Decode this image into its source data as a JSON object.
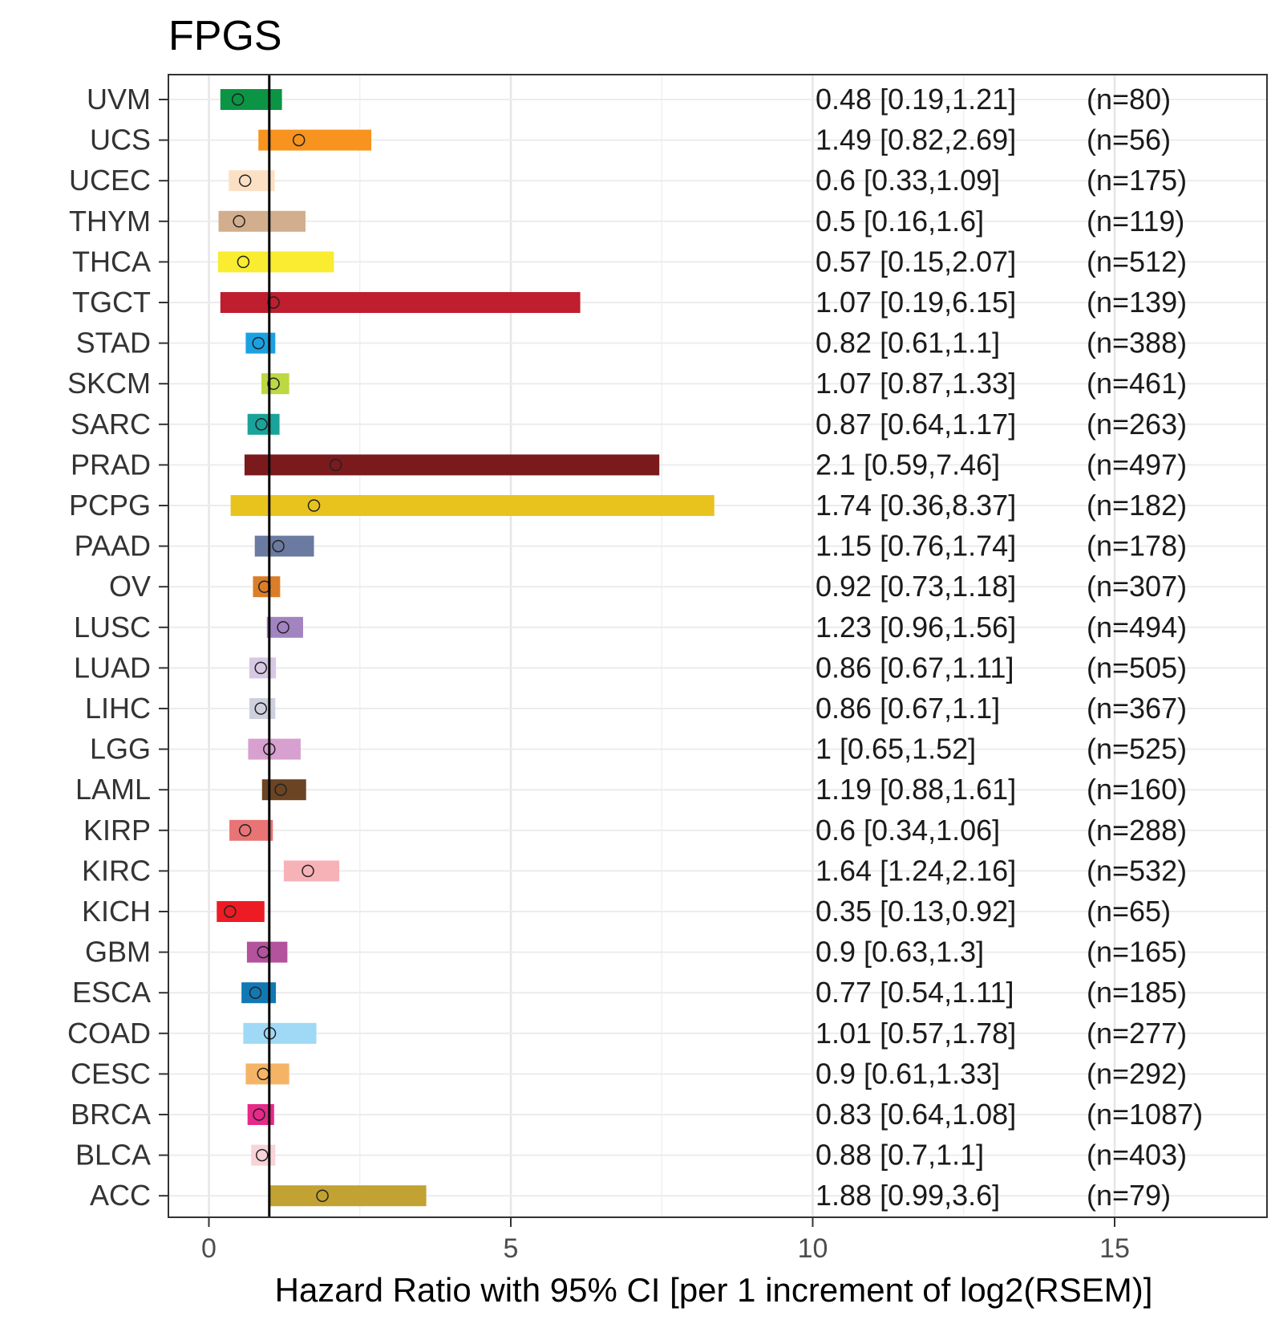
{
  "chart_data": {
    "type": "forest",
    "title": "FPGS",
    "xlabel": "Hazard Ratio with 95% CI [per 1 increment of log2(RSEM)]",
    "ylabel": "",
    "xlim": [
      -0.7,
      17.4
    ],
    "xticks": [
      0,
      5,
      10,
      15
    ],
    "xtick_labels": [
      "0",
      "5",
      "10",
      "15"
    ],
    "reference_line": 1,
    "grid": true,
    "rows": [
      {
        "cancer": "UVM",
        "hr": 0.48,
        "lo": 0.19,
        "hi": 1.21,
        "label": "0.48 [0.19,1.21]",
        "n": "(n=80)",
        "color": "#0b9444"
      },
      {
        "cancer": "UCS",
        "hr": 1.49,
        "lo": 0.82,
        "hi": 2.69,
        "label": "1.49 [0.82,2.69]",
        "n": "(n=56)",
        "color": "#f7931e"
      },
      {
        "cancer": "UCEC",
        "hr": 0.6,
        "lo": 0.33,
        "hi": 1.09,
        "label": "0.6 [0.33,1.09]",
        "n": "(n=175)",
        "color": "#fbe0c4"
      },
      {
        "cancer": "THYM",
        "hr": 0.5,
        "lo": 0.16,
        "hi": 1.6,
        "label": "0.5 [0.16,1.6]",
        "n": "(n=119)",
        "color": "#d2ae8e"
      },
      {
        "cancer": "THCA",
        "hr": 0.57,
        "lo": 0.15,
        "hi": 2.07,
        "label": "0.57 [0.15,2.07]",
        "n": "(n=512)",
        "color": "#f9ec31"
      },
      {
        "cancer": "TGCT",
        "hr": 1.07,
        "lo": 0.19,
        "hi": 6.15,
        "label": "1.07 [0.19,6.15]",
        "n": "(n=139)",
        "color": "#be1e2d"
      },
      {
        "cancer": "STAD",
        "hr": 0.82,
        "lo": 0.61,
        "hi": 1.1,
        "label": "0.82 [0.61,1.1]",
        "n": "(n=388)",
        "color": "#1ba1e2"
      },
      {
        "cancer": "SKCM",
        "hr": 1.07,
        "lo": 0.87,
        "hi": 1.33,
        "label": "1.07 [0.87,1.33]",
        "n": "(n=461)",
        "color": "#bcd843"
      },
      {
        "cancer": "SARC",
        "hr": 0.87,
        "lo": 0.64,
        "hi": 1.17,
        "label": "0.87 [0.64,1.17]",
        "n": "(n=263)",
        "color": "#1aa39a"
      },
      {
        "cancer": "PRAD",
        "hr": 2.1,
        "lo": 0.59,
        "hi": 7.46,
        "label": "2.1 [0.59,7.46]",
        "n": "(n=497)",
        "color": "#7b1a1c"
      },
      {
        "cancer": "PCPG",
        "hr": 1.74,
        "lo": 0.36,
        "hi": 8.37,
        "label": "1.74 [0.36,8.37]",
        "n": "(n=182)",
        "color": "#e8c31e"
      },
      {
        "cancer": "PAAD",
        "hr": 1.15,
        "lo": 0.76,
        "hi": 1.74,
        "label": "1.15 [0.76,1.74]",
        "n": "(n=178)",
        "color": "#6b7aa1"
      },
      {
        "cancer": "OV",
        "hr": 0.92,
        "lo": 0.73,
        "hi": 1.18,
        "label": "0.92 [0.73,1.18]",
        "n": "(n=307)",
        "color": "#da7e2a"
      },
      {
        "cancer": "LUSC",
        "hr": 1.23,
        "lo": 0.96,
        "hi": 1.56,
        "label": "1.23 [0.96,1.56]",
        "n": "(n=494)",
        "color": "#a184c0"
      },
      {
        "cancer": "LUAD",
        "hr": 0.86,
        "lo": 0.67,
        "hi": 1.11,
        "label": "0.86 [0.67,1.11]",
        "n": "(n=505)",
        "color": "#d7c8e3"
      },
      {
        "cancer": "LIHC",
        "hr": 0.86,
        "lo": 0.67,
        "hi": 1.1,
        "label": "0.86 [0.67,1.1]",
        "n": "(n=367)",
        "color": "#cfd0dd"
      },
      {
        "cancer": "LGG",
        "hr": 1,
        "lo": 0.65,
        "hi": 1.52,
        "label": "1 [0.65,1.52]",
        "n": "(n=525)",
        "color": "#d7a0cf"
      },
      {
        "cancer": "LAML",
        "hr": 1.19,
        "lo": 0.88,
        "hi": 1.61,
        "label": "1.19 [0.88,1.61]",
        "n": "(n=160)",
        "color": "#6b4423"
      },
      {
        "cancer": "KIRP",
        "hr": 0.6,
        "lo": 0.34,
        "hi": 1.06,
        "label": "0.6 [0.34,1.06]",
        "n": "(n=288)",
        "color": "#e87476"
      },
      {
        "cancer": "KIRC",
        "hr": 1.64,
        "lo": 1.24,
        "hi": 2.16,
        "label": "1.64 [1.24,2.16]",
        "n": "(n=532)",
        "color": "#f7b2b8"
      },
      {
        "cancer": "KICH",
        "hr": 0.35,
        "lo": 0.13,
        "hi": 0.92,
        "label": "0.35 [0.13,0.92]",
        "n": "(n=65)",
        "color": "#ed1c24"
      },
      {
        "cancer": "GBM",
        "hr": 0.9,
        "lo": 0.63,
        "hi": 1.3,
        "label": "0.9 [0.63,1.3]",
        "n": "(n=165)",
        "color": "#b3529d"
      },
      {
        "cancer": "ESCA",
        "hr": 0.77,
        "lo": 0.54,
        "hi": 1.11,
        "label": "0.77 [0.54,1.11]",
        "n": "(n=185)",
        "color": "#1278b4"
      },
      {
        "cancer": "COAD",
        "hr": 1.01,
        "lo": 0.57,
        "hi": 1.78,
        "label": "1.01 [0.57,1.78]",
        "n": "(n=277)",
        "color": "#9fd9f6"
      },
      {
        "cancer": "CESC",
        "hr": 0.9,
        "lo": 0.61,
        "hi": 1.33,
        "label": "0.9 [0.61,1.33]",
        "n": "(n=292)",
        "color": "#f5b465"
      },
      {
        "cancer": "BRCA",
        "hr": 0.83,
        "lo": 0.64,
        "hi": 1.08,
        "label": "0.83 [0.64,1.08]",
        "n": "(n=1087)",
        "color": "#e7298a"
      },
      {
        "cancer": "BLCA",
        "hr": 0.88,
        "lo": 0.7,
        "hi": 1.1,
        "label": "0.88 [0.7,1.1]",
        "n": "(n=403)",
        "color": "#f8d3d8"
      },
      {
        "cancer": "ACC",
        "hr": 1.88,
        "lo": 0.99,
        "hi": 3.6,
        "label": "1.88 [0.99,3.6]",
        "n": "(n=79)",
        "color": "#c1a232"
      }
    ]
  }
}
